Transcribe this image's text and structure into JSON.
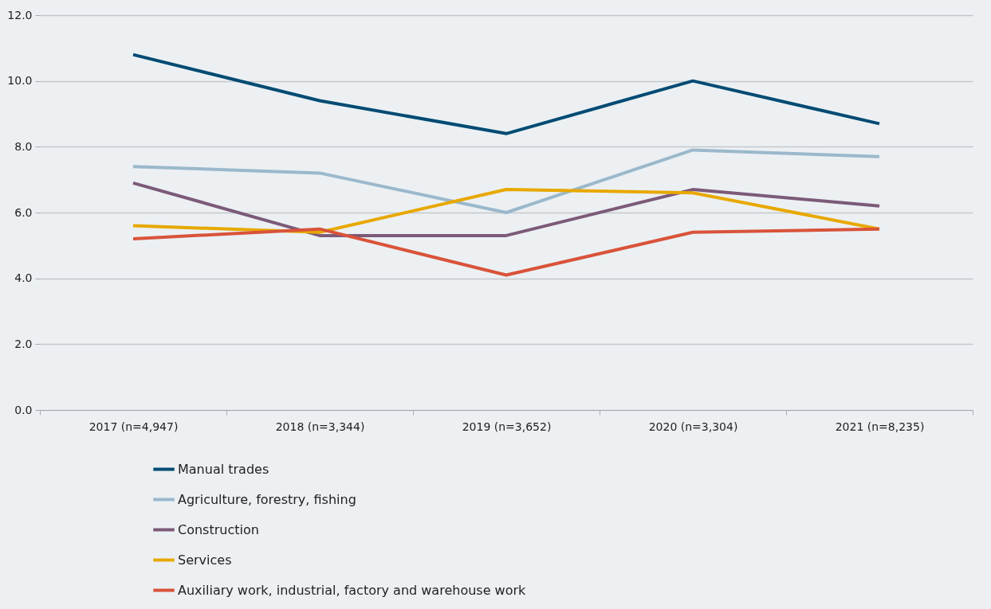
{
  "chart_data": {
    "type": "line",
    "categories": [
      "2017 (n=4,947)",
      "2018 (n=3,344)",
      "2019 (n=3,652)",
      "2020 (n=3,304)",
      "2021 (n=8,235)"
    ],
    "series": [
      {
        "name": "Manual trades",
        "color": "#004b73",
        "values": [
          10.8,
          9.4,
          8.4,
          10.0,
          8.7
        ]
      },
      {
        "name": "Agriculture, forestry, fishing",
        "color": "#9bb8cc",
        "values": [
          7.4,
          7.2,
          6.0,
          7.9,
          7.7
        ]
      },
      {
        "name": "Construction",
        "color": "#7c5a78",
        "values": [
          6.9,
          5.3,
          5.3,
          6.7,
          6.2
        ]
      },
      {
        "name": "Services",
        "color": "#e8a800",
        "values": [
          5.6,
          5.4,
          6.7,
          6.6,
          5.5
        ]
      },
      {
        "name": "Auxiliary work, industrial, factory and warehouse work",
        "color": "#d9533a",
        "values": [
          5.2,
          5.5,
          4.1,
          5.4,
          5.5
        ]
      }
    ],
    "ylim": [
      0,
      12
    ],
    "yticks": [
      {
        "value": 0,
        "label": "0.0"
      },
      {
        "value": 2,
        "label": "2.0"
      },
      {
        "value": 4,
        "label": "4.0"
      },
      {
        "value": 6,
        "label": "6.0"
      },
      {
        "value": 8,
        "label": "8.0"
      },
      {
        "value": 10,
        "label": "10.0"
      },
      {
        "value": 12,
        "label": "12.0"
      }
    ],
    "grid": "y",
    "legend": "bottom",
    "marker": "none",
    "line_style": "solid"
  }
}
